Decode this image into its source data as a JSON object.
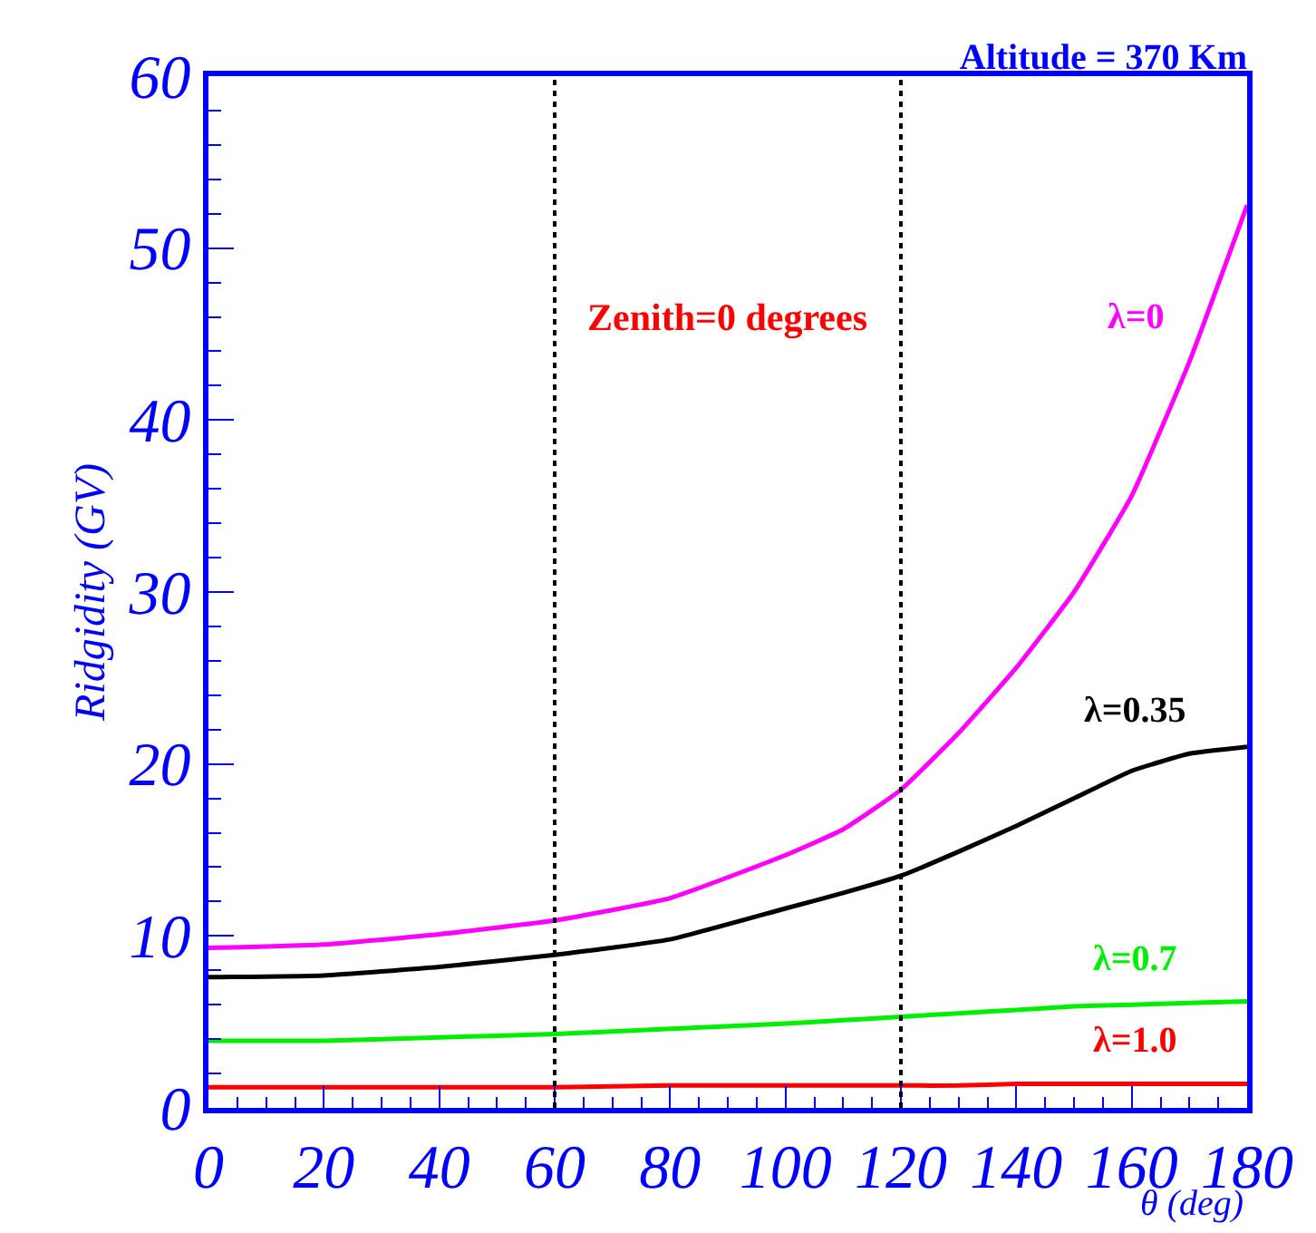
{
  "chart_data": {
    "type": "line",
    "title": "Altitude = 370 Km",
    "xlabel": "θ (deg)",
    "ylabel": "Ridgidity (GV)",
    "x": [
      0,
      20,
      40,
      60,
      80,
      100,
      110,
      120,
      130,
      140,
      150,
      160,
      170,
      180
    ],
    "series": [
      {
        "name": "λ=0",
        "color": "#ff00ff",
        "values": [
          9.3,
          9.5,
          10.1,
          10.9,
          12.2,
          14.7,
          16.2,
          18.5,
          21.8,
          25.6,
          30.0,
          35.6,
          43.4,
          52.5
        ]
      },
      {
        "name": "λ=0.35",
        "color": "#000000",
        "values": [
          7.6,
          7.7,
          8.2,
          8.9,
          9.8,
          11.6,
          12.5,
          13.5,
          14.9,
          16.4,
          18.0,
          19.6,
          20.6,
          21.0
        ]
      },
      {
        "name": "λ=0.7",
        "color": "#00ee00",
        "values": [
          3.9,
          3.9,
          4.1,
          4.3,
          4.6,
          4.9,
          5.1,
          5.3,
          5.5,
          5.7,
          5.9,
          6.0,
          6.1,
          6.2
        ]
      },
      {
        "name": "λ=1.0",
        "color": "#ff0000",
        "values": [
          1.2,
          1.2,
          1.2,
          1.2,
          1.3,
          1.3,
          1.3,
          1.3,
          1.3,
          1.4,
          1.4,
          1.4,
          1.4,
          1.4
        ]
      }
    ],
    "xlim": [
      0,
      180
    ],
    "ylim": [
      0,
      60
    ],
    "xticks": [
      0,
      20,
      40,
      60,
      80,
      100,
      120,
      140,
      160,
      180
    ],
    "yticks": [
      0,
      10,
      20,
      30,
      40,
      50,
      60
    ],
    "ref_lines": [
      {
        "axis": "x",
        "value": 60,
        "color": "#000000",
        "line_style": "dotted"
      },
      {
        "axis": "x",
        "value": 120,
        "color": "#000000",
        "line_style": "dotted"
      }
    ],
    "annotations": [
      "Zenith=0 degrees"
    ],
    "legend": false,
    "marker": "none",
    "line_style": "solid"
  }
}
